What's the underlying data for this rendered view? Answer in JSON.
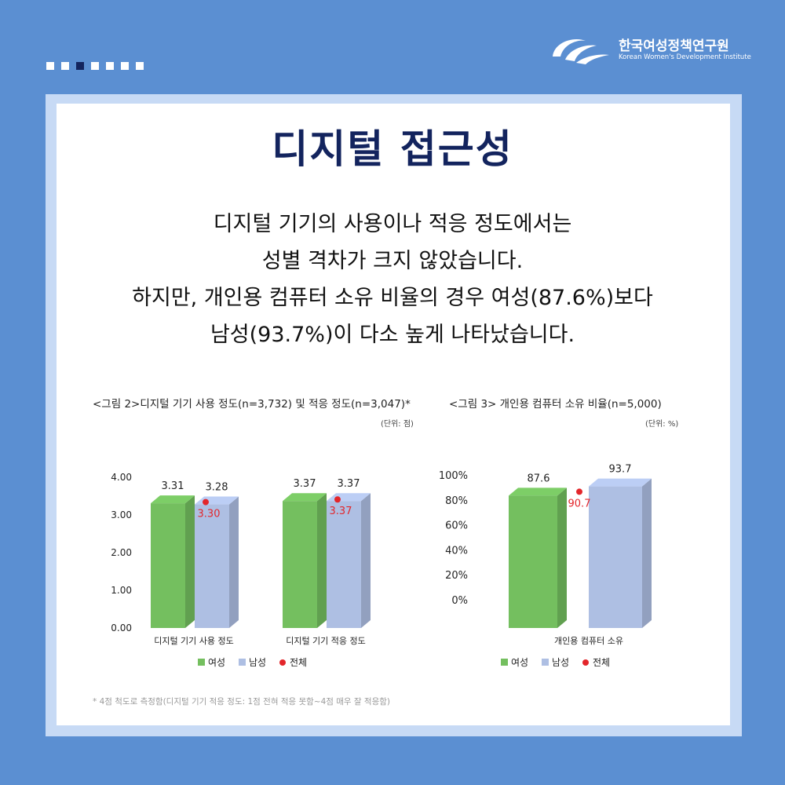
{
  "header": {
    "logo_kr": "한국여성정책연구원",
    "logo_en": "Korean Women's Development Institute",
    "page_dots": 7,
    "active_dot": 3
  },
  "title": "디지털 접근성",
  "description": [
    "디지털 기기의 사용이나 적응 정도에서는",
    "성별 격차가 크지 않았습니다.",
    "하지만, 개인용 컴퓨터 소유 비율의 경우 여성(87.6%)보다",
    "남성(93.7%)이 다소 높게 나타났습니다."
  ],
  "colors": {
    "female": "#74bf5f",
    "male": "#aebfe3",
    "overall": "#e3262b",
    "title": "#13245e",
    "label_overall": "#e3262b"
  },
  "chart_data": [
    {
      "type": "bar",
      "title": "<그림 2>디지털 기기 사용 정도(n=3,732) 및 적응 정도(n=3,047)*",
      "unit": "(단위: 점)",
      "categories": [
        "디지털 기기 사용 정도",
        "디지털 기기 적응 정도"
      ],
      "series": [
        {
          "name": "여성",
          "values": [
            3.31,
            3.37
          ]
        },
        {
          "name": "남성",
          "values": [
            3.28,
            3.37
          ]
        }
      ],
      "overall": {
        "name": "전체",
        "values": [
          3.3,
          3.37
        ]
      },
      "value_labels": {
        "female": [
          "3.31",
          "3.37"
        ],
        "male": [
          "3.28",
          "3.37"
        ],
        "overall": [
          "3.30",
          "3.37"
        ]
      },
      "yticks": [
        "4.00",
        "3.00",
        "2.00",
        "1.00",
        "0.00"
      ],
      "ylim": [
        0,
        4
      ],
      "legend": [
        "여성",
        "남성",
        "전체"
      ]
    },
    {
      "type": "bar",
      "title": "<그림 3> 개인용 컴퓨터 소유 비율(n=5,000)",
      "unit": "(단위: %)",
      "categories": [
        "개인용 컴퓨터 소유"
      ],
      "series": [
        {
          "name": "여성",
          "values": [
            87.6
          ]
        },
        {
          "name": "남성",
          "values": [
            93.7
          ]
        }
      ],
      "overall": {
        "name": "전체",
        "values": [
          90.7
        ]
      },
      "value_labels": {
        "female": [
          "87.6"
        ],
        "male": [
          "93.7"
        ],
        "overall": [
          "90.7"
        ]
      },
      "yticks": [
        "100%",
        "80%",
        "60%",
        "40%",
        "20%",
        "0%"
      ],
      "ylim": [
        0,
        100
      ],
      "legend": [
        "여성",
        "남성",
        "전체"
      ]
    }
  ],
  "footnote": "* 4점 척도로 측정함(디지털 기기 적응 정도: 1점 전혀 적응 못함~4점 매우 잘 적응함)"
}
